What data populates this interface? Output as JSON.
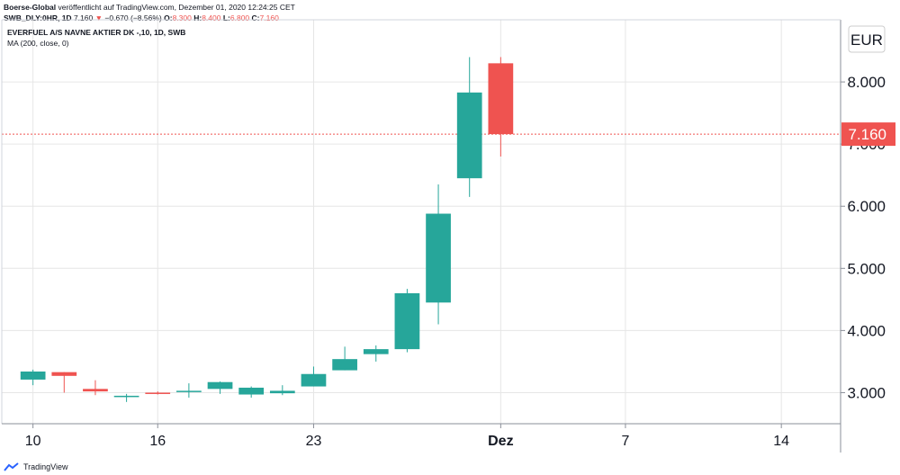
{
  "header": {
    "publisher": "Boerse-Global",
    "published_text": "veröffentlicht auf TradingView.com, Dezember 01, 2020 12:24:25 CET",
    "symbol": "SWB_DLY:0HR, 1D",
    "last_price": "7.160",
    "change": "−0.670 (−8.56%)",
    "ohlc": [
      {
        "label": "O:",
        "value": "8.300"
      },
      {
        "label": "H:",
        "value": "8.400"
      },
      {
        "label": "L:",
        "value": "6.800"
      },
      {
        "label": "C:",
        "value": "7.160"
      }
    ]
  },
  "chart_data": {
    "type": "candlestick",
    "title": "EVERFUEL A/S NAVNE AKTIER DK -,10, 1D, SWB",
    "indicator": "MA (200, close, 0)",
    "currency": "EUR",
    "ylim": [
      2.5,
      9.0
    ],
    "y_ticks": [
      3.0,
      4.0,
      5.0,
      6.0,
      7.0,
      8.0
    ],
    "y_tick_labels": [
      "3.000",
      "4.000",
      "5.000",
      "6.000",
      "7.000",
      "8.000"
    ],
    "x_ticks": [
      {
        "label": "10",
        "slot": 0
      },
      {
        "label": "16",
        "slot": 4
      },
      {
        "label": "23",
        "slot": 9
      },
      {
        "label": "Dez",
        "slot": 15
      },
      {
        "label": "7",
        "slot": 19
      },
      {
        "label": "14",
        "slot": 24
      }
    ],
    "slot_range": [
      -1,
      25.9
    ],
    "last_price_value": 7.16,
    "last_price_label": "7.160",
    "colors": {
      "up": "#26a69a",
      "down": "#ef5350",
      "grid": "#e6e6e6"
    },
    "candles": [
      {
        "slot": 0,
        "o": 3.21,
        "h": 3.37,
        "l": 3.12,
        "c": 3.34
      },
      {
        "slot": 1,
        "o": 3.33,
        "h": 3.33,
        "l": 3.0,
        "c": 3.27
      },
      {
        "slot": 2,
        "o": 3.06,
        "h": 3.2,
        "l": 2.96,
        "c": 3.02
      },
      {
        "slot": 3,
        "o": 2.94,
        "h": 2.98,
        "l": 2.85,
        "c": 2.95
      },
      {
        "slot": 4,
        "o": 3.0,
        "h": 3.02,
        "l": 2.97,
        "c": 2.99
      },
      {
        "slot": 5,
        "o": 3.01,
        "h": 3.15,
        "l": 2.92,
        "c": 3.03
      },
      {
        "slot": 6,
        "o": 3.06,
        "h": 3.18,
        "l": 2.98,
        "c": 3.17
      },
      {
        "slot": 7,
        "o": 2.97,
        "h": 3.1,
        "l": 2.92,
        "c": 3.08
      },
      {
        "slot": 8,
        "o": 2.99,
        "h": 3.12,
        "l": 2.96,
        "c": 3.03
      },
      {
        "slot": 9,
        "o": 3.1,
        "h": 3.42,
        "l": 3.1,
        "c": 3.3
      },
      {
        "slot": 10,
        "o": 3.36,
        "h": 3.74,
        "l": 3.36,
        "c": 3.54
      },
      {
        "slot": 11,
        "o": 3.62,
        "h": 3.76,
        "l": 3.5,
        "c": 3.7
      },
      {
        "slot": 12,
        "o": 3.7,
        "h": 4.67,
        "l": 3.65,
        "c": 4.6
      },
      {
        "slot": 13,
        "o": 4.45,
        "h": 6.35,
        "l": 4.1,
        "c": 5.88
      },
      {
        "slot": 14,
        "o": 6.45,
        "h": 8.4,
        "l": 6.15,
        "c": 7.83
      },
      {
        "slot": 15,
        "o": 8.3,
        "h": 8.4,
        "l": 6.8,
        "c": 7.16
      }
    ]
  },
  "footer": {
    "brand": "TradingView"
  }
}
